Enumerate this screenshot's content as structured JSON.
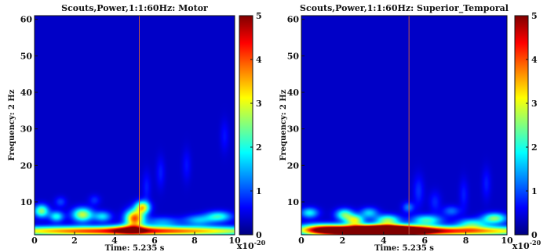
{
  "chart_data": [
    {
      "type": "heatmap",
      "title": "Scouts,Power,1:1:60Hz: Motor",
      "xlabel": "Time: 5.235 s",
      "ylabel": "Frequency: 2 Hz",
      "xlim": [
        0,
        10
      ],
      "ylim": [
        1,
        61
      ],
      "x_ticks": [
        0,
        2,
        4,
        6,
        8,
        10
      ],
      "y_ticks": [
        10,
        20,
        30,
        40,
        50,
        60
      ],
      "cursor_time": 5.235,
      "colorbar": {
        "range": [
          0,
          5
        ],
        "ticks": [
          0,
          1,
          2,
          3,
          4,
          5
        ],
        "exponent": "x10-20",
        "colormap": "jet"
      },
      "background_value": 0.35,
      "blobs": [
        {
          "t": 4.6,
          "f": 2,
          "st": 5.2,
          "sf": 0.9,
          "v": 4.0
        },
        {
          "t": 5.0,
          "f": 5.5,
          "st": 0.32,
          "sf": 1.6,
          "v": 3.6
        },
        {
          "t": 5.4,
          "f": 8.5,
          "st": 0.25,
          "sf": 1.2,
          "v": 2.8
        },
        {
          "t": 4.8,
          "f": 2.5,
          "st": 0.6,
          "sf": 1.0,
          "v": 1.8
        },
        {
          "t": 2.4,
          "f": 6.5,
          "st": 0.35,
          "sf": 1.3,
          "v": 2.5
        },
        {
          "t": 0.35,
          "f": 7.5,
          "st": 0.25,
          "sf": 1.2,
          "v": 2.2
        },
        {
          "t": 1.1,
          "f": 6,
          "st": 0.25,
          "sf": 1.0,
          "v": 1.6
        },
        {
          "t": 3.4,
          "f": 6,
          "st": 0.3,
          "sf": 1.0,
          "v": 1.4
        },
        {
          "t": 9.2,
          "f": 6,
          "st": 0.45,
          "sf": 1.0,
          "v": 1.7
        },
        {
          "t": 8.2,
          "f": 5,
          "st": 0.5,
          "sf": 1.0,
          "v": 1.2
        },
        {
          "t": 6.4,
          "f": 4.5,
          "st": 0.6,
          "sf": 1.0,
          "v": 1.0
        },
        {
          "t": 1.3,
          "f": 10,
          "st": 0.2,
          "sf": 1.0,
          "v": 0.6
        },
        {
          "t": 3.0,
          "f": 10.5,
          "st": 0.2,
          "sf": 1.0,
          "v": 0.5
        },
        {
          "t": 5.6,
          "f": 14,
          "st": 0.15,
          "sf": 3.0,
          "v": 0.4
        },
        {
          "t": 6.3,
          "f": 18,
          "st": 0.15,
          "sf": 3.0,
          "v": 0.4
        },
        {
          "t": 7.6,
          "f": 20,
          "st": 0.15,
          "sf": 3.0,
          "v": 0.35
        },
        {
          "t": 9.5,
          "f": 28,
          "st": 0.15,
          "sf": 3.0,
          "v": 0.35
        }
      ]
    },
    {
      "type": "heatmap",
      "title": "Scouts,Power,1:1:60Hz: Superior_Temporal",
      "xlabel": "Time: 5.235 s",
      "ylabel": "Frequency: 2 Hz",
      "xlim": [
        0,
        10
      ],
      "ylim": [
        1,
        61
      ],
      "x_ticks": [
        0,
        2,
        4,
        6,
        8,
        10
      ],
      "y_ticks": [
        10,
        20,
        30,
        40,
        50,
        60
      ],
      "cursor_time": 5.235,
      "colorbar": {
        "range": [
          0,
          5
        ],
        "ticks": [
          0,
          1,
          2,
          3,
          4,
          5
        ],
        "exponent": "x10-20",
        "colormap": "jet"
      },
      "background_value": 0.35,
      "blobs": [
        {
          "t": 3.3,
          "f": 2,
          "st": 1.6,
          "sf": 1.0,
          "v": 5.5
        },
        {
          "t": 4.2,
          "f": 2.2,
          "st": 1.2,
          "sf": 1.0,
          "v": 4.0
        },
        {
          "t": 7.2,
          "f": 2,
          "st": 3.5,
          "sf": 0.9,
          "v": 3.6
        },
        {
          "t": 1.0,
          "f": 2.5,
          "st": 0.8,
          "sf": 1.0,
          "v": 3.0
        },
        {
          "t": 2.6,
          "f": 5,
          "st": 0.3,
          "sf": 1.0,
          "v": 2.5
        },
        {
          "t": 2.1,
          "f": 6.5,
          "st": 0.3,
          "sf": 1.1,
          "v": 2.0
        },
        {
          "t": 4.2,
          "f": 5,
          "st": 0.4,
          "sf": 1.0,
          "v": 2.2
        },
        {
          "t": 6.1,
          "f": 5,
          "st": 0.5,
          "sf": 1.0,
          "v": 1.8
        },
        {
          "t": 8.3,
          "f": 4,
          "st": 0.5,
          "sf": 1.0,
          "v": 1.6
        },
        {
          "t": 9.4,
          "f": 5.5,
          "st": 0.4,
          "sf": 1.0,
          "v": 2.2
        },
        {
          "t": 0.4,
          "f": 7,
          "st": 0.3,
          "sf": 1.0,
          "v": 1.5
        },
        {
          "t": 3.3,
          "f": 7,
          "st": 0.3,
          "sf": 1.0,
          "v": 1.3
        },
        {
          "t": 5.2,
          "f": 8.5,
          "st": 0.2,
          "sf": 1.0,
          "v": 0.9
        },
        {
          "t": 7.3,
          "f": 7.5,
          "st": 0.3,
          "sf": 1.0,
          "v": 0.8
        },
        {
          "t": 5.7,
          "f": 13,
          "st": 0.18,
          "sf": 3.0,
          "v": 0.5
        },
        {
          "t": 6.5,
          "f": 10,
          "st": 0.2,
          "sf": 2.0,
          "v": 0.45
        },
        {
          "t": 7.9,
          "f": 12,
          "st": 0.15,
          "sf": 3.0,
          "v": 0.4
        },
        {
          "t": 9.0,
          "f": 15,
          "st": 0.15,
          "sf": 3.0,
          "v": 0.4
        }
      ]
    }
  ]
}
